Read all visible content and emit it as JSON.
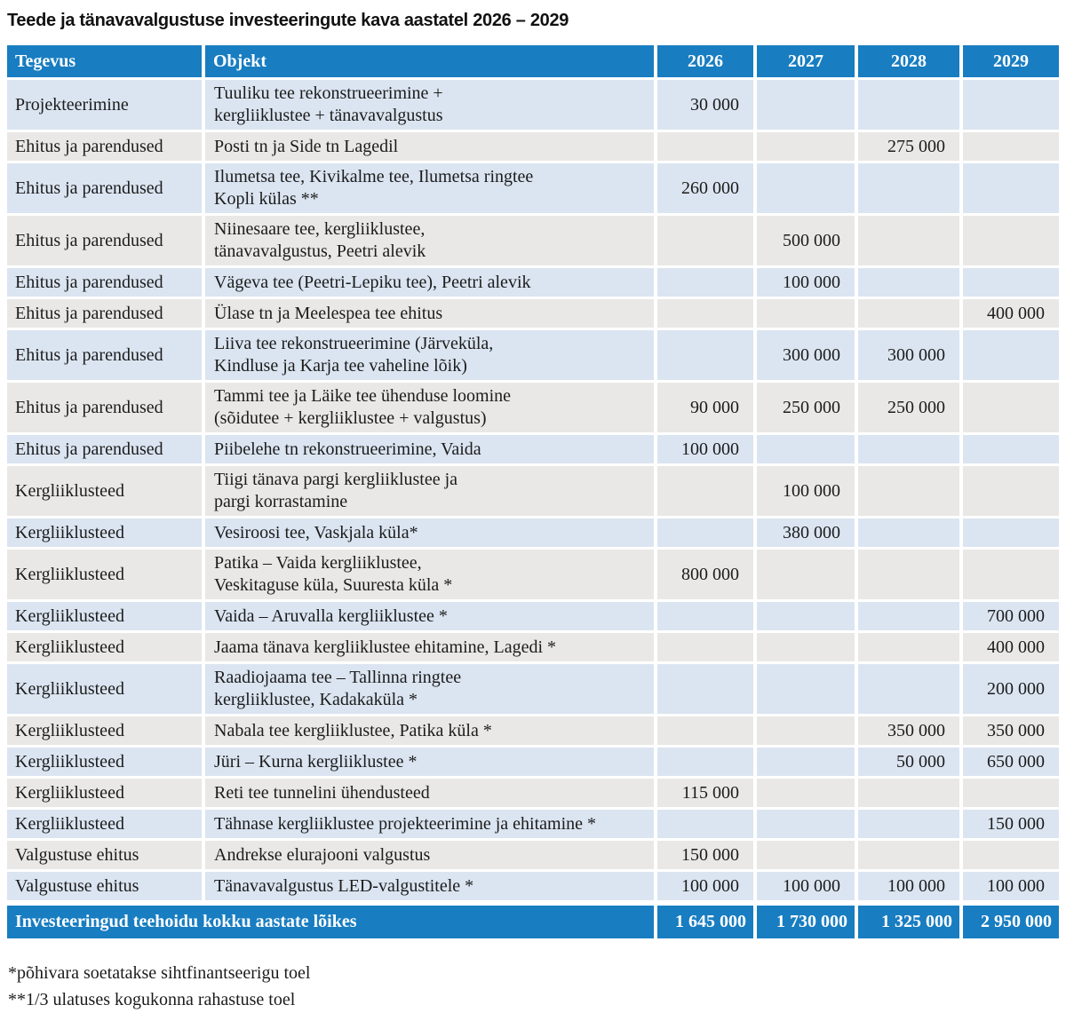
{
  "title": "Teede ja tänavavalgustuse investeeringute kava aastatel 2026 – 2029",
  "colors": {
    "header_blue": "#187dc1",
    "row_light_blue": "#dbe5f1",
    "row_light_gray": "#e9e8e6",
    "header_text": "#ffffff",
    "body_text": "#1c1c1c"
  },
  "table": {
    "columns": [
      "Tegevus",
      "Objekt",
      "2026",
      "2027",
      "2028",
      "2029"
    ],
    "rows": [
      {
        "tegevus": "Projekteerimine",
        "objekt": "Tuuliku tee rekonstrueerimine +\nkergliiklustee + tänavavalgustus",
        "values": [
          "30 000",
          "",
          "",
          ""
        ]
      },
      {
        "tegevus": "Ehitus ja parendused",
        "objekt": "Posti tn ja Side tn Lagedil",
        "values": [
          "",
          "",
          "275 000",
          ""
        ]
      },
      {
        "tegevus": "Ehitus ja parendused",
        "objekt": "Ilumetsa tee, Kivikalme tee, Ilumetsa ringtee\nKopli külas **",
        "values": [
          "260 000",
          "",
          "",
          ""
        ]
      },
      {
        "tegevus": "Ehitus ja parendused",
        "objekt": "Niinesaare tee, kergliiklustee,\ntänavavalgustus, Peetri alevik",
        "values": [
          "",
          "500 000",
          "",
          ""
        ]
      },
      {
        "tegevus": "Ehitus ja parendused",
        "objekt": "Vägeva tee (Peetri-Lepiku tee), Peetri alevik",
        "values": [
          "",
          "100 000",
          "",
          ""
        ]
      },
      {
        "tegevus": "Ehitus ja parendused",
        "objekt": "Ülase tn ja Meelespea tee ehitus",
        "values": [
          "",
          "",
          "",
          "400 000"
        ]
      },
      {
        "tegevus": "Ehitus ja parendused",
        "objekt": "Liiva tee rekonstrueerimine (Järveküla,\nKindluse ja Karja tee vaheline lõik)",
        "values": [
          "",
          "300 000",
          "300 000",
          ""
        ]
      },
      {
        "tegevus": "Ehitus ja parendused",
        "objekt": "Tammi tee ja Läike tee ühenduse loomine\n(sõidutee + kergliiklustee + valgustus)",
        "values": [
          "90 000",
          "250 000",
          "250 000",
          ""
        ]
      },
      {
        "tegevus": "Ehitus ja parendused",
        "objekt": "Piibelehe tn rekonstrueerimine, Vaida",
        "values": [
          "100 000",
          "",
          "",
          ""
        ]
      },
      {
        "tegevus": "Kergliiklusteed",
        "objekt": "Tiigi tänava pargi kergliiklustee ja\npargi korrastamine",
        "values": [
          "",
          "100 000",
          "",
          ""
        ]
      },
      {
        "tegevus": "Kergliiklusteed",
        "objekt": "Vesiroosi tee, Vaskjala küla*",
        "values": [
          "",
          "380 000",
          "",
          ""
        ]
      },
      {
        "tegevus": "Kergliiklusteed",
        "objekt": "Patika – Vaida kergliiklustee,\nVeskitaguse küla, Suuresta küla *",
        "values": [
          "800 000",
          "",
          "",
          ""
        ]
      },
      {
        "tegevus": "Kergliiklusteed",
        "objekt": "Vaida – Aruvalla kergliiklustee *",
        "values": [
          "",
          "",
          "",
          "700 000"
        ]
      },
      {
        "tegevus": "Kergliiklusteed",
        "objekt": "Jaama tänava kergliiklustee ehitamine, Lagedi *",
        "values": [
          "",
          "",
          "",
          "400 000"
        ]
      },
      {
        "tegevus": "Kergliiklusteed",
        "objekt": "Raadiojaama tee – Tallinna ringtee\nkergliiklustee, Kadakaküla *",
        "values": [
          "",
          "",
          "",
          "200 000"
        ]
      },
      {
        "tegevus": "Kergliiklusteed",
        "objekt": "Nabala tee kergliiklustee, Patika küla *",
        "values": [
          "",
          "",
          "350 000",
          "350 000"
        ]
      },
      {
        "tegevus": "Kergliiklusteed",
        "objekt": "Jüri – Kurna kergliiklustee *",
        "values": [
          "",
          "",
          "50 000",
          "650 000"
        ]
      },
      {
        "tegevus": "Kergliiklusteed",
        "objekt": "Reti tee tunnelini ühendusteed",
        "values": [
          "115 000",
          "",
          "",
          ""
        ]
      },
      {
        "tegevus": "Kergliiklusteed",
        "objekt": "Tähnase kergliiklustee projekteerimine ja ehitamine *",
        "values": [
          "",
          "",
          "",
          "150 000"
        ]
      },
      {
        "tegevus": "Valgustuse ehitus",
        "objekt": "Andrekse elurajooni valgustus",
        "values": [
          "150 000",
          "",
          "",
          ""
        ]
      },
      {
        "tegevus": "Valgustuse ehitus",
        "objekt": "Tänavavalgustus LED-valgustitele *",
        "values": [
          "100 000",
          "100 000",
          "100 000",
          "100 000"
        ]
      }
    ],
    "footer": {
      "label": "Investeeringud teehoidu kokku aastate lõikes",
      "values": [
        "1 645 000",
        "1 730 000",
        "1 325 000",
        "2 950 000"
      ]
    }
  },
  "footnotes": [
    "*põhivara soetatakse sihtfinantseerigu toel",
    "**1/3 ulatuses kogukonna rahastuse toel"
  ]
}
